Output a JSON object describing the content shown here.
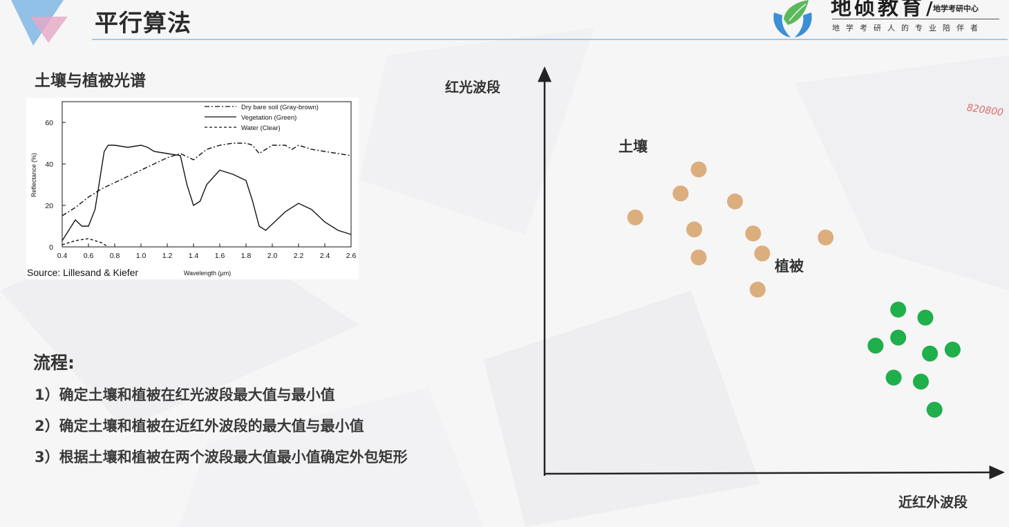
{
  "header": {
    "title": "平行算法",
    "logo": {
      "name": "地硕教育",
      "subtitle": "地学考研中心",
      "slogan": "地学考研人的专业陪伴者"
    }
  },
  "watermark": "820800",
  "spectrum_panel": {
    "heading": "土壤与植被光谱",
    "source": "Source: Lillesand & Kiefer",
    "chart_data": {
      "type": "line",
      "xlabel": "Wavelength (μm)",
      "ylabel": "Reflectance (%)",
      "xlim": [
        0.4,
        2.6
      ],
      "ylim": [
        0,
        70
      ],
      "x_ticks": [
        "0.4",
        "0.6",
        "0.8",
        "1.0",
        "1.2",
        "1.4",
        "1.6",
        "1.8",
        "2.0",
        "2.2",
        "2.4",
        "2.6"
      ],
      "y_ticks": [
        "0",
        "20",
        "40",
        "60"
      ],
      "legend_position": "top-right",
      "series": [
        {
          "name": "Dry bare soil (Gray-brown)",
          "style": "dash-dot",
          "x": [
            0.4,
            0.5,
            0.6,
            0.7,
            0.8,
            0.9,
            1.0,
            1.1,
            1.2,
            1.3,
            1.4,
            1.5,
            1.6,
            1.7,
            1.8,
            1.85,
            1.9,
            1.95,
            2.0,
            2.1,
            2.15,
            2.2,
            2.3,
            2.4,
            2.5,
            2.6
          ],
          "y": [
            15,
            19,
            24,
            28,
            31,
            34,
            37,
            40,
            43,
            45,
            42,
            47,
            49,
            50,
            50,
            49,
            45,
            47,
            49,
            49,
            47,
            49,
            47,
            46,
            45,
            44
          ]
        },
        {
          "name": "Vegetation (Green)",
          "style": "solid",
          "x": [
            0.4,
            0.45,
            0.5,
            0.55,
            0.6,
            0.65,
            0.7,
            0.72,
            0.75,
            0.8,
            0.9,
            1.0,
            1.05,
            1.1,
            1.2,
            1.3,
            1.35,
            1.4,
            1.45,
            1.5,
            1.6,
            1.7,
            1.8,
            1.85,
            1.9,
            1.95,
            2.0,
            2.1,
            2.2,
            2.3,
            2.4,
            2.5,
            2.6
          ],
          "y": [
            3,
            8,
            13,
            10,
            10,
            18,
            38,
            46,
            49,
            49,
            48,
            49,
            48,
            46,
            45,
            44,
            30,
            20,
            22,
            30,
            37,
            35,
            32,
            22,
            10,
            8,
            11,
            17,
            21,
            18,
            12,
            8,
            6
          ]
        },
        {
          "name": "Water (Clear)",
          "style": "dashed",
          "x": [
            0.4,
            0.5,
            0.6,
            0.65,
            0.7,
            0.75
          ],
          "y": [
            1,
            3,
            4,
            3,
            2,
            0
          ]
        }
      ]
    }
  },
  "process": {
    "heading": "流程:",
    "steps": [
      "1）确定土壤和植被在红光波段最大值与最小值",
      "2）确定土壤和植被在近红外波段的最大值与最小值",
      "3）根据土壤和植被在两个波段最大值最小值确定外包矩形"
    ]
  },
  "scatter": {
    "y_axis_label": "红光波段",
    "x_axis_label": "近红外波段",
    "chart_data": {
      "type": "scatter",
      "xlabel": "近红外波段",
      "ylabel": "红光波段",
      "grid": false,
      "series": [
        {
          "name": "土壤",
          "color": "#dcae7d",
          "x": [
            0.2,
            0.3,
            0.34,
            0.33,
            0.42,
            0.46,
            0.48,
            0.34,
            0.47,
            0.62
          ],
          "y": [
            0.64,
            0.7,
            0.76,
            0.61,
            0.68,
            0.6,
            0.55,
            0.54,
            0.46,
            0.59
          ]
        },
        {
          "name": "植被",
          "color": "#1faf4b",
          "x": [
            0.73,
            0.78,
            0.78,
            0.84,
            0.85,
            0.9,
            0.77,
            0.83,
            0.86
          ],
          "y": [
            0.32,
            0.41,
            0.34,
            0.39,
            0.3,
            0.31,
            0.24,
            0.23,
            0.16
          ]
        }
      ]
    }
  },
  "colors": {
    "accent": "#9fc8ea",
    "soil": "#dcae7d",
    "vegetation": "#1faf4b"
  }
}
